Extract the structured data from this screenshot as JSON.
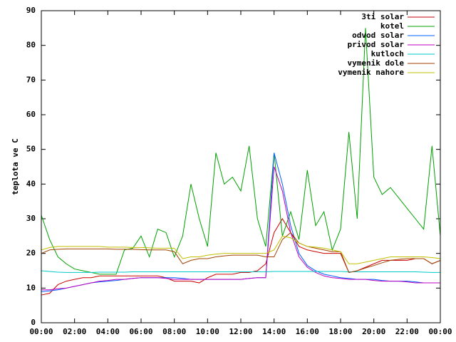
{
  "chart_data": {
    "type": "line",
    "ylabel": "teplota ve C",
    "x": [
      0,
      0.5,
      1,
      1.5,
      2,
      2.5,
      3,
      3.5,
      4,
      4.5,
      5,
      5.5,
      6,
      6.5,
      7,
      7.5,
      8,
      8.5,
      9,
      9.5,
      10,
      10.5,
      11,
      11.5,
      12,
      12.5,
      13,
      13.5,
      14,
      14.5,
      15,
      15.5,
      16,
      16.5,
      17,
      17.5,
      18,
      18.5,
      19,
      19.5,
      20,
      20.5,
      21,
      21.5,
      22,
      22.5,
      23,
      23.5,
      24
    ],
    "xlim": [
      0,
      24
    ],
    "xticks": [
      {
        "value": 0,
        "label": "00:00"
      },
      {
        "value": 2,
        "label": "02:00"
      },
      {
        "value": 4,
        "label": "04:00"
      },
      {
        "value": 6,
        "label": "06:00"
      },
      {
        "value": 8,
        "label": "08:00"
      },
      {
        "value": 10,
        "label": "10:00"
      },
      {
        "value": 12,
        "label": "12:00"
      },
      {
        "value": 14,
        "label": "14:00"
      },
      {
        "value": 16,
        "label": "16:00"
      },
      {
        "value": 18,
        "label": "18:00"
      },
      {
        "value": 20,
        "label": "20:00"
      },
      {
        "value": 22,
        "label": "22:00"
      },
      {
        "value": 24,
        "label": "00:00"
      }
    ],
    "ylim": [
      0,
      90
    ],
    "yticks": [
      0,
      10,
      20,
      30,
      40,
      50,
      60,
      70,
      80,
      90
    ],
    "legend": "top right",
    "series": [
      {
        "name": "3ti solar",
        "color": "#cc0000",
        "values": [
          8,
          8.5,
          11,
          12,
          12.5,
          13,
          13,
          13.5,
          13.5,
          13.5,
          13.5,
          13.5,
          13.5,
          13.5,
          13.5,
          13,
          12,
          12,
          12,
          11.5,
          13,
          14,
          14,
          14,
          14.5,
          14.5,
          15,
          17,
          26,
          30,
          26,
          22,
          21,
          20.5,
          20,
          20,
          20,
          14.5,
          15,
          16,
          17,
          18,
          18,
          18,
          18,
          18.5,
          18.5,
          17,
          18
        ]
      },
      {
        "name": "kotel",
        "color": "#00a000",
        "values": [
          31,
          24,
          19,
          17,
          15.5,
          15,
          14.5,
          14,
          14,
          14,
          21,
          21.5,
          25,
          19,
          27,
          26,
          19,
          25,
          40,
          30,
          22,
          49,
          40,
          42,
          38,
          51,
          30,
          22,
          49,
          25,
          32,
          24,
          44,
          28,
          32,
          21,
          27,
          55,
          30,
          85,
          42,
          37,
          39,
          36,
          33,
          30,
          27,
          51,
          25
        ]
      },
      {
        "name": "odvod solar",
        "color": "#0060ff",
        "values": [
          9,
          9.2,
          9.5,
          10,
          10.5,
          11,
          11.5,
          11.8,
          12,
          12.2,
          12.5,
          12.8,
          13,
          13,
          13,
          13,
          13,
          12.8,
          12.5,
          12.5,
          12.5,
          12.5,
          12.5,
          12.5,
          12.5,
          12.8,
          13,
          13,
          49,
          40,
          28,
          20,
          16.5,
          15,
          14,
          13.5,
          13,
          12.8,
          12.5,
          12.5,
          12.5,
          12.2,
          12,
          12,
          12,
          11.8,
          11.5,
          11.5,
          11.5
        ]
      },
      {
        "name": "privod solar",
        "color": "#c000c0",
        "values": [
          9.5,
          9.5,
          9.8,
          10,
          10.5,
          11,
          11.5,
          12,
          12.2,
          12.5,
          12.5,
          12.8,
          13,
          13,
          13,
          12.8,
          12.5,
          12.5,
          12.5,
          12.5,
          12.5,
          12.5,
          12.5,
          12.5,
          12.5,
          12.8,
          13,
          13,
          45,
          38,
          26,
          19,
          16,
          14.5,
          13.5,
          13,
          12.8,
          12.5,
          12.5,
          12.5,
          12.2,
          12,
          12,
          12,
          11.8,
          11.5,
          11.5,
          11.5,
          11.5
        ]
      },
      {
        "name": "kutloch",
        "color": "#00c8c8",
        "values": [
          15,
          14.8,
          14.6,
          14.5,
          14.5,
          14.5,
          14.5,
          14.6,
          14.6,
          14.6,
          14.6,
          14.7,
          14.7,
          14.7,
          14.7,
          14.7,
          14.7,
          14.7,
          14.7,
          14.7,
          14.7,
          14.7,
          14.7,
          14.7,
          14.7,
          14.7,
          14.7,
          14.7,
          14.8,
          14.8,
          14.8,
          14.8,
          14.8,
          14.8,
          14.8,
          14.8,
          14.8,
          14.7,
          14.7,
          14.7,
          14.7,
          14.7,
          14.7,
          14.7,
          14.7,
          14.7,
          14.6,
          14.5,
          14.5
        ]
      },
      {
        "name": "vymenik dole",
        "color": "#a04000",
        "values": [
          20,
          21,
          21.2,
          21.3,
          21.3,
          21.3,
          21.3,
          21.3,
          21.3,
          21.2,
          21.2,
          21.2,
          21.1,
          21,
          21,
          21,
          20.5,
          17,
          18,
          18.5,
          18.5,
          19,
          19.3,
          19.5,
          19.5,
          19.5,
          19.5,
          19,
          19,
          24,
          26,
          23,
          22,
          21.5,
          21,
          20.5,
          20.5,
          14.5,
          15,
          15.8,
          16.5,
          17.3,
          18,
          18.3,
          18.5,
          18.5,
          18.5,
          17,
          18
        ]
      },
      {
        "name": "vymenik nahore",
        "color": "#c0c000",
        "values": [
          21,
          21.7,
          22,
          22,
          22,
          22,
          22,
          22,
          21.8,
          21.8,
          21.8,
          21.7,
          21.7,
          21.6,
          21.5,
          21.5,
          21.5,
          18.5,
          19,
          19,
          19.5,
          19.8,
          20,
          20,
          20,
          20,
          20,
          20,
          21,
          25,
          24.5,
          23,
          22,
          21.8,
          21.5,
          21,
          20.5,
          17,
          17,
          17.5,
          18,
          18.5,
          19,
          19,
          19,
          19,
          19,
          18.8,
          18.5
        ]
      }
    ]
  }
}
